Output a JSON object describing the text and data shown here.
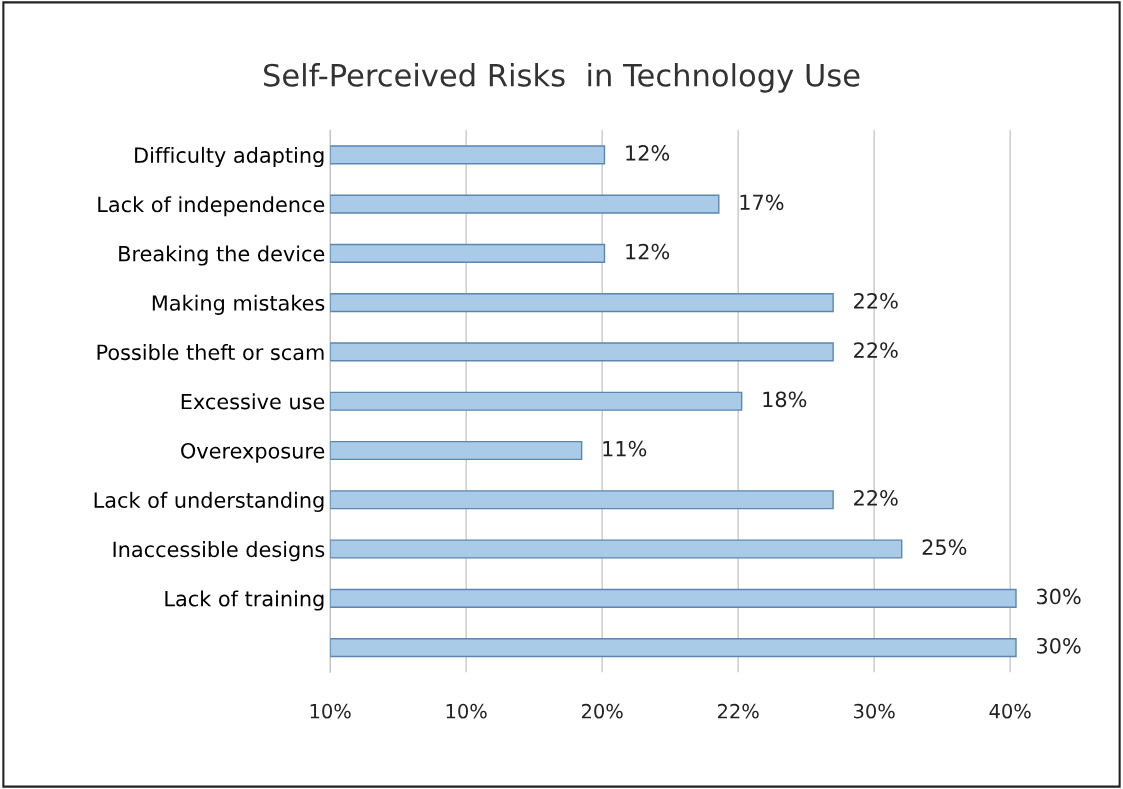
{
  "chart_data": {
    "type": "bar",
    "orientation": "horizontal",
    "title": "Self-Perceived Risks  in Technology Use",
    "categories": [
      "Difficulty adapting",
      "Lack of independence",
      "Breaking the device",
      "Making mistakes",
      "Possible theft or scam",
      "Excessive use",
      "Overexposure",
      "Lack of understanding",
      "Inaccessible designs",
      "Lack of training",
      null
    ],
    "values": [
      12,
      17,
      12,
      22,
      22,
      18,
      11,
      22,
      25,
      30,
      30
    ],
    "value_labels": [
      "12%",
      "17%",
      "12%",
      "22%",
      "22%",
      "18%",
      "11%",
      "22%",
      "25%",
      "30%",
      "30%"
    ],
    "color": "#a9cbe8",
    "annotations": [
      "10%",
      "10%",
      "20%",
      "22%",
      "30%",
      "40%"
    ],
    "grid": "x"
  }
}
